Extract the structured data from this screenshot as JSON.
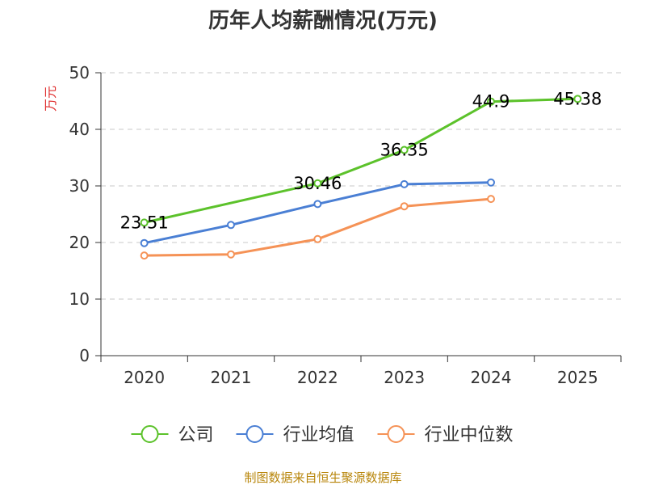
{
  "chart_data": {
    "type": "line",
    "title": "历年人均薪酬情况(万元)",
    "ylabel": "万元",
    "xlabel": "",
    "categories": [
      "2020",
      "2021",
      "2022",
      "2023",
      "2024",
      "2025"
    ],
    "ylim": [
      0,
      50
    ],
    "yticks": [
      0,
      10,
      20,
      30,
      40,
      50
    ],
    "grid": true,
    "legend_position": "bottom",
    "series": [
      {
        "name": "公司",
        "color": "#5cc22b",
        "values": [
          23.51,
          null,
          30.46,
          36.35,
          44.9,
          45.38
        ],
        "labels": [
          "23.51",
          "",
          "30.46",
          "36.35",
          "44.9",
          "45.38"
        ]
      },
      {
        "name": "行业均值",
        "color": "#4a7fd4",
        "values": [
          19.9,
          23.1,
          26.8,
          30.3,
          30.6,
          null
        ],
        "labels": []
      },
      {
        "name": "行业中位数",
        "color": "#f59256",
        "values": [
          17.7,
          17.9,
          20.6,
          26.4,
          27.7,
          null
        ],
        "labels": []
      }
    ],
    "source": "制图数据来自恒生聚源数据库"
  }
}
